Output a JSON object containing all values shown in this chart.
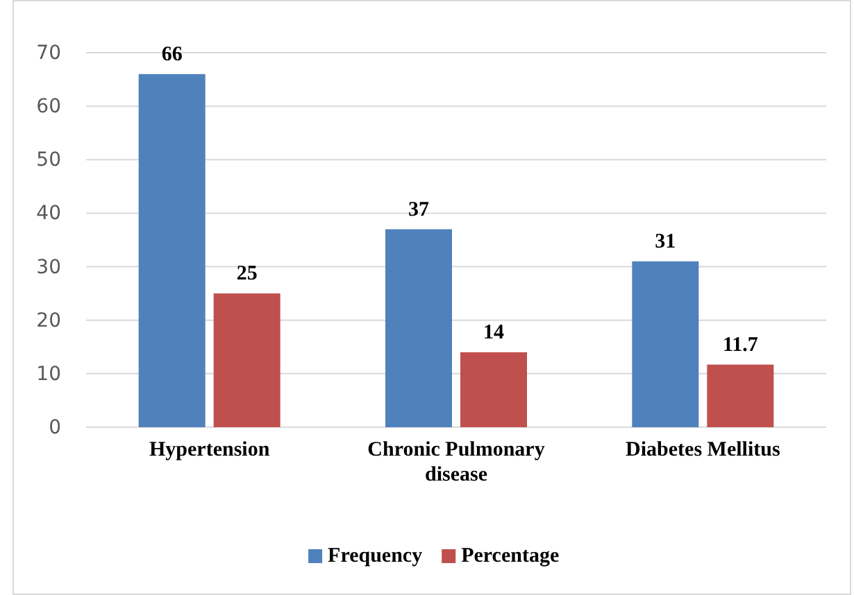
{
  "chart_data": {
    "type": "bar",
    "categories": [
      "Hypertension",
      "Chronic Pulmonary disease",
      "Diabetes Mellitus"
    ],
    "series": [
      {
        "name": "Frequency",
        "color": "#4f81bd",
        "values": [
          66,
          37,
          31
        ]
      },
      {
        "name": "Percentage",
        "color": "#c0504d",
        "values": [
          25,
          14,
          11.7
        ]
      }
    ],
    "ylim": [
      0,
      70
    ],
    "yticks": [
      0,
      10,
      20,
      30,
      40,
      50,
      60,
      70
    ],
    "grid": "y",
    "legend": "bottom",
    "data_labels": true
  }
}
